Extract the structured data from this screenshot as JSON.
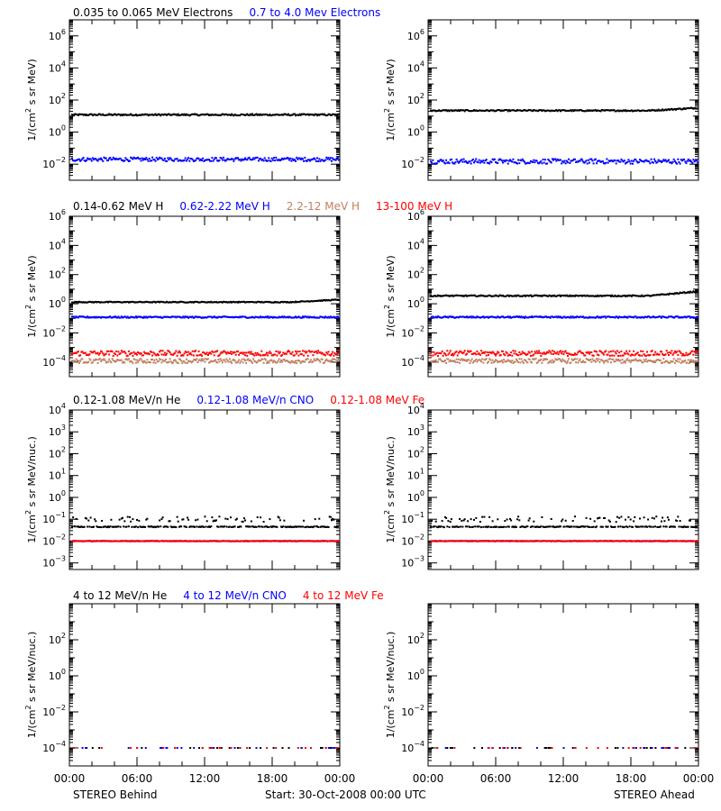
{
  "colors": {
    "black": "#000000",
    "blue": "#0000ff",
    "brown": "#c08060",
    "red": "#ff0000"
  },
  "footer": {
    "left": "STEREO Behind",
    "center": "Start: 30-Oct-2008 00:00 UTC",
    "right": "STEREO Ahead"
  },
  "rows": [
    {
      "legend": [
        {
          "label": "0.035 to 0.065 MeV Electrons",
          "color": "black"
        },
        {
          "label": "0.7 to 4.0 Mev Electrons",
          "color": "blue"
        }
      ],
      "ylabel_main": "1/(cm",
      "ylabel_sup": "2",
      "ylabel_rest": " s sr MeV)"
    },
    {
      "legend": [
        {
          "label": "0.14-0.62 MeV H",
          "color": "black"
        },
        {
          "label": "0.62-2.22 MeV H",
          "color": "blue"
        },
        {
          "label": "2.2-12 MeV H",
          "color": "brown"
        },
        {
          "label": "13-100 MeV H",
          "color": "red"
        }
      ],
      "ylabel_main": "1/(cm",
      "ylabel_sup": "2",
      "ylabel_rest": " s sr MeV)"
    },
    {
      "legend": [
        {
          "label": "0.12-1.08 MeV/n He",
          "color": "black"
        },
        {
          "label": "0.12-1.08 MeV/n CNO",
          "color": "blue"
        },
        {
          "label": "0.12-1.08 MeV Fe",
          "color": "red"
        }
      ],
      "ylabel_main": "1/(cm",
      "ylabel_sup": "2",
      "ylabel_rest": " s sr MeV/nuc.)"
    },
    {
      "legend": [
        {
          "label": "4 to 12 MeV/n He",
          "color": "black"
        },
        {
          "label": "4 to 12 MeV/n CNO",
          "color": "blue"
        },
        {
          "label": "4 to 12 MeV Fe",
          "color": "red"
        }
      ],
      "ylabel_main": "1/(cm",
      "ylabel_sup": "2",
      "ylabel_rest": " s sr MeV/nuc.)"
    }
  ],
  "chart_data": [
    {
      "type": "scatter",
      "spacecraft": "STEREO Behind",
      "y_scale": "log",
      "ylim": [
        0.001,
        10000000
      ],
      "xlim": [
        "00:00",
        "24:00"
      ],
      "y_tick_exponents": [
        -2,
        0,
        2,
        4,
        6
      ],
      "x_ticks": [
        "00:00",
        "06:00",
        "12:00",
        "18:00",
        "00:00"
      ],
      "series": [
        {
          "name": "0.035 to 0.065 MeV Electrons",
          "color": "black",
          "level": 12,
          "spread": 0.05
        },
        {
          "name": "0.7 to 4.0 Mev Electrons",
          "color": "blue",
          "level": 0.02,
          "spread": 0.12
        }
      ]
    },
    {
      "type": "scatter",
      "spacecraft": "STEREO Ahead",
      "y_scale": "log",
      "ylim": [
        0.001,
        10000000
      ],
      "xlim": [
        "00:00",
        "24:00"
      ],
      "y_tick_exponents": [
        -2,
        0,
        2,
        4,
        6
      ],
      "x_ticks": [
        "00:00",
        "06:00",
        "12:00",
        "18:00",
        "00:00"
      ],
      "series": [
        {
          "name": "0.035 to 0.065 MeV Electrons",
          "color": "black",
          "level": 22,
          "spread": 0.04,
          "rise_end": 32
        },
        {
          "name": "0.7 to 4.0 Mev Electrons",
          "color": "blue",
          "level": 0.015,
          "spread": 0.15
        }
      ]
    },
    {
      "type": "scatter",
      "spacecraft": "STEREO Behind",
      "y_scale": "log",
      "ylim": [
        1e-05,
        1000000
      ],
      "xlim": [
        "00:00",
        "24:00"
      ],
      "y_tick_exponents": [
        -4,
        -2,
        0,
        2,
        4,
        6
      ],
      "x_ticks": [
        "00:00",
        "06:00",
        "12:00",
        "18:00",
        "00:00"
      ],
      "series": [
        {
          "name": "0.14-0.62 MeV H",
          "color": "black",
          "level": 1.3,
          "spread": 0.03,
          "rise_end": 1.9
        },
        {
          "name": "0.62-2.22 MeV H",
          "color": "blue",
          "level": 0.12,
          "spread": 0.05
        },
        {
          "name": "2.2-12 MeV H",
          "color": "brown",
          "level": 0.00012,
          "spread": 0.15
        },
        {
          "name": "13-100 MeV H",
          "color": "red",
          "level": 0.0004,
          "spread": 0.18
        }
      ]
    },
    {
      "type": "scatter",
      "spacecraft": "STEREO Ahead",
      "y_scale": "log",
      "ylim": [
        1e-05,
        1000000
      ],
      "xlim": [
        "00:00",
        "24:00"
      ],
      "y_tick_exponents": [
        -4,
        -2,
        0,
        2,
        4,
        6
      ],
      "x_ticks": [
        "00:00",
        "06:00",
        "12:00",
        "18:00",
        "00:00"
      ],
      "series": [
        {
          "name": "0.14-0.62 MeV H",
          "color": "black",
          "level": 3.5,
          "spread": 0.04,
          "rise_end": 7
        },
        {
          "name": "0.62-2.22 MeV H",
          "color": "blue",
          "level": 0.12,
          "spread": 0.05
        },
        {
          "name": "2.2-12 MeV H",
          "color": "brown",
          "level": 0.00012,
          "spread": 0.15
        },
        {
          "name": "13-100 MeV H",
          "color": "red",
          "level": 0.0004,
          "spread": 0.18
        }
      ]
    },
    {
      "type": "scatter",
      "spacecraft": "STEREO Behind",
      "y_scale": "log",
      "ylim": [
        0.0005,
        10000
      ],
      "xlim": [
        "00:00",
        "24:00"
      ],
      "y_tick_exponents": [
        -3,
        -2,
        -1,
        0,
        1,
        2,
        3,
        4
      ],
      "x_ticks": [
        "00:00",
        "06:00",
        "12:00",
        "18:00",
        "00:00"
      ],
      "series": [
        {
          "name": "0.12-1.08 MeV/n He",
          "color": "black",
          "level": 0.045,
          "spread": 0.02,
          "upper_level": 0.1
        },
        {
          "name": "0.12-1.08 MeV/n CNO",
          "color": "blue",
          "level": 0.01,
          "spread": 0.01
        },
        {
          "name": "0.12-1.08 MeV Fe",
          "color": "red",
          "level": 0.01,
          "spread": 0.01
        }
      ]
    },
    {
      "type": "scatter",
      "spacecraft": "STEREO Ahead",
      "y_scale": "log",
      "ylim": [
        0.0005,
        10000
      ],
      "xlim": [
        "00:00",
        "24:00"
      ],
      "y_tick_exponents": [
        -3,
        -2,
        -1,
        0,
        1,
        2,
        3,
        4
      ],
      "x_ticks": [
        "00:00",
        "06:00",
        "12:00",
        "18:00",
        "00:00"
      ],
      "series": [
        {
          "name": "0.12-1.08 MeV/n He",
          "color": "black",
          "level": 0.045,
          "spread": 0.02,
          "upper_level": 0.1
        },
        {
          "name": "0.12-1.08 MeV/n CNO",
          "color": "blue",
          "level": 0.01,
          "spread": 0.01
        },
        {
          "name": "0.12-1.08 MeV Fe",
          "color": "red",
          "level": 0.01,
          "spread": 0.01
        }
      ]
    },
    {
      "type": "scatter",
      "spacecraft": "STEREO Behind",
      "y_scale": "log",
      "ylim": [
        1e-05,
        10000
      ],
      "xlim": [
        "00:00",
        "24:00"
      ],
      "y_tick_exponents": [
        -4,
        -2,
        0,
        2
      ],
      "x_ticks": [
        "00:00",
        "06:00",
        "12:00",
        "18:00",
        "00:00"
      ],
      "series": [
        {
          "name": "4 to 12 MeV/n He",
          "color": "black",
          "level": 0.0001,
          "spread": 0.0,
          "sparse": true
        },
        {
          "name": "4 to 12 MeV/n CNO",
          "color": "blue",
          "level": 0.0001,
          "spread": 0.0,
          "sparse": true
        },
        {
          "name": "4 to 12 MeV Fe",
          "color": "red",
          "level": 0.0001,
          "spread": 0.0,
          "sparse": true
        }
      ]
    },
    {
      "type": "scatter",
      "spacecraft": "STEREO Ahead",
      "y_scale": "log",
      "ylim": [
        1e-05,
        10000
      ],
      "xlim": [
        "00:00",
        "24:00"
      ],
      "y_tick_exponents": [
        -4,
        -2,
        0,
        2
      ],
      "x_ticks": [
        "00:00",
        "06:00",
        "12:00",
        "18:00",
        "00:00"
      ],
      "series": [
        {
          "name": "4 to 12 MeV/n He",
          "color": "black",
          "level": 0.0001,
          "spread": 0.0,
          "sparse": true
        },
        {
          "name": "4 to 12 MeV/n CNO",
          "color": "blue",
          "level": 0.0001,
          "spread": 0.0,
          "sparse": true
        },
        {
          "name": "4 to 12 MeV Fe",
          "color": "red",
          "level": 0.0001,
          "spread": 0.0,
          "sparse": true
        }
      ]
    }
  ]
}
